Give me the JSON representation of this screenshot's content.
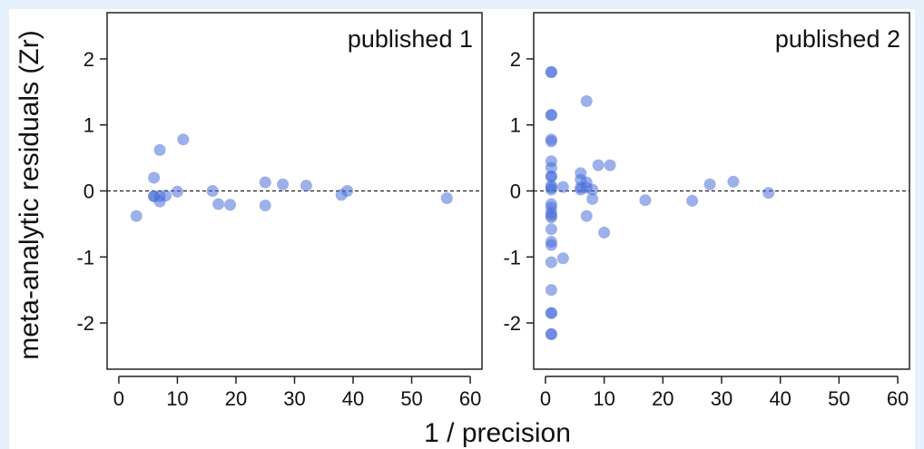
{
  "ylabel": "meta-analytic residuals (Zr)",
  "xlabel": "1 / precision",
  "point_color": "#4a6fd8",
  "chart_data": [
    {
      "type": "scatter",
      "title": "published 1",
      "xlim": [
        -2,
        62
      ],
      "ylim": [
        -2.7,
        2.7
      ],
      "xticks": [
        0,
        10,
        20,
        30,
        40,
        50,
        60
      ],
      "yticks": [
        -2,
        -1,
        0,
        1,
        2
      ],
      "reference_line": 0,
      "points": [
        {
          "x": 3,
          "y": -0.38
        },
        {
          "x": 6,
          "y": 0.2
        },
        {
          "x": 6,
          "y": -0.08
        },
        {
          "x": 6,
          "y": -0.08
        },
        {
          "x": 7,
          "y": 0.62
        },
        {
          "x": 7,
          "y": -0.08
        },
        {
          "x": 7,
          "y": -0.16
        },
        {
          "x": 8,
          "y": -0.07
        },
        {
          "x": 10,
          "y": -0.01
        },
        {
          "x": 11,
          "y": 0.78
        },
        {
          "x": 16,
          "y": 0.0
        },
        {
          "x": 17,
          "y": -0.2
        },
        {
          "x": 19,
          "y": -0.21
        },
        {
          "x": 25,
          "y": 0.13
        },
        {
          "x": 25,
          "y": -0.22
        },
        {
          "x": 28,
          "y": 0.1
        },
        {
          "x": 32,
          "y": 0.08
        },
        {
          "x": 38,
          "y": -0.06
        },
        {
          "x": 39,
          "y": 0.0
        },
        {
          "x": 56,
          "y": -0.11
        }
      ]
    },
    {
      "type": "scatter",
      "title": "published 2",
      "xlim": [
        -2,
        62
      ],
      "ylim": [
        -2.7,
        2.7
      ],
      "xticks": [
        0,
        10,
        20,
        30,
        40,
        50,
        60
      ],
      "yticks": [
        -2,
        -1,
        0,
        1,
        2
      ],
      "reference_line": 0,
      "points": [
        {
          "x": 1,
          "y": 1.8
        },
        {
          "x": 1,
          "y": 1.8
        },
        {
          "x": 1,
          "y": 1.15
        },
        {
          "x": 1,
          "y": 1.15
        },
        {
          "x": 1,
          "y": 0.78
        },
        {
          "x": 1,
          "y": 0.75
        },
        {
          "x": 1,
          "y": 0.45
        },
        {
          "x": 1,
          "y": 0.35
        },
        {
          "x": 1,
          "y": 0.22
        },
        {
          "x": 1,
          "y": 0.22
        },
        {
          "x": 1,
          "y": 0.08
        },
        {
          "x": 1,
          "y": 0.05
        },
        {
          "x": 1,
          "y": 0.02
        },
        {
          "x": 1,
          "y": -0.2
        },
        {
          "x": 1,
          "y": -0.25
        },
        {
          "x": 1,
          "y": -0.33
        },
        {
          "x": 1,
          "y": -0.37
        },
        {
          "x": 1,
          "y": -0.4
        },
        {
          "x": 1,
          "y": -0.58
        },
        {
          "x": 1,
          "y": -0.77
        },
        {
          "x": 1,
          "y": -0.82
        },
        {
          "x": 1,
          "y": -1.08
        },
        {
          "x": 1,
          "y": -1.5
        },
        {
          "x": 1,
          "y": -1.85
        },
        {
          "x": 1,
          "y": -1.85
        },
        {
          "x": 1,
          "y": -2.17
        },
        {
          "x": 1,
          "y": -2.17
        },
        {
          "x": 3,
          "y": 0.06
        },
        {
          "x": 3,
          "y": -1.02
        },
        {
          "x": 6,
          "y": 0.27
        },
        {
          "x": 6,
          "y": 0.17
        },
        {
          "x": 6,
          "y": 0.05
        },
        {
          "x": 6,
          "y": 0.02
        },
        {
          "x": 7,
          "y": 1.36
        },
        {
          "x": 7,
          "y": 0.13
        },
        {
          "x": 7,
          "y": 0.05
        },
        {
          "x": 7,
          "y": -0.38
        },
        {
          "x": 8,
          "y": 0.02
        },
        {
          "x": 8,
          "y": -0.12
        },
        {
          "x": 9,
          "y": 0.39
        },
        {
          "x": 10,
          "y": -0.63
        },
        {
          "x": 11,
          "y": 0.39
        },
        {
          "x": 17,
          "y": -0.14
        },
        {
          "x": 25,
          "y": -0.15
        },
        {
          "x": 28,
          "y": 0.1
        },
        {
          "x": 32,
          "y": 0.14
        },
        {
          "x": 38,
          "y": -0.03
        }
      ]
    }
  ]
}
